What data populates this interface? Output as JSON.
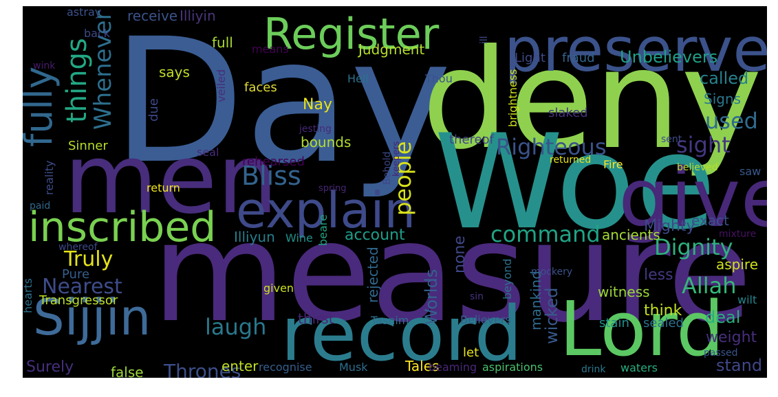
{
  "background": "#000000",
  "words": [
    {
      "text": "Day",
      "color": "#3b5d94"
    },
    {
      "text": "deny",
      "color": "#8fd14f"
    },
    {
      "text": "measure",
      "color": "#4a2a7c"
    },
    {
      "text": "Woe",
      "color": "#26918c"
    },
    {
      "text": "men",
      "color": "#472d7b"
    },
    {
      "text": "give",
      "color": "#472879"
    },
    {
      "text": "record",
      "color": "#2b7d8e"
    },
    {
      "text": "Lord",
      "color": "#5cc863"
    },
    {
      "text": "preserved",
      "color": "#3b528b"
    },
    {
      "text": "Register",
      "color": "#6ccd5a"
    },
    {
      "text": "explain",
      "color": "#3e4a89"
    },
    {
      "text": "inscribed",
      "color": "#7ad151"
    },
    {
      "text": "Sijjin",
      "color": "#3e6b99"
    },
    {
      "text": "fully",
      "color": "#31688e"
    },
    {
      "text": "things",
      "color": "#22a884"
    },
    {
      "text": "Whenever",
      "color": "#2d6f8e"
    },
    {
      "text": "Righteous",
      "color": "#3a538b"
    },
    {
      "text": "Bliss",
      "color": "#33638d"
    },
    {
      "text": "people",
      "color": "#d8e219"
    },
    {
      "text": "sight",
      "color": "#453781"
    },
    {
      "text": "used",
      "color": "#2f6c8e"
    },
    {
      "text": "command",
      "color": "#20a486"
    },
    {
      "text": "Dignity",
      "color": "#2db27d"
    },
    {
      "text": "Allah",
      "color": "#35b779"
    },
    {
      "text": "Truly",
      "color": "#e5e419"
    },
    {
      "text": "Nearest",
      "color": "#3e4c8a"
    },
    {
      "text": "laugh",
      "color": "#2a788e"
    },
    {
      "text": "Thrones",
      "color": "#3c4f8a"
    },
    {
      "text": "account",
      "color": "#1f9e89"
    },
    {
      "text": "Unbelievers",
      "color": "#1fa088"
    },
    {
      "text": "Judgment",
      "color": "#b5de2b"
    },
    {
      "text": "Hell",
      "color": "#2c718e"
    },
    {
      "text": "Thou",
      "color": "#3b528b"
    },
    {
      "text": "Light",
      "color": "#3e4a89"
    },
    {
      "text": "fraud",
      "color": "#33638d"
    },
    {
      "text": "called",
      "color": "#26828e"
    },
    {
      "text": "full",
      "color": "#a8db34"
    },
    {
      "text": "means",
      "color": "#440154"
    },
    {
      "text": "receive",
      "color": "#3b528b"
    },
    {
      "text": "Illiyin",
      "color": "#4a357a"
    },
    {
      "text": "says",
      "color": "#c2df23"
    },
    {
      "text": "faces",
      "color": "#e1dd37"
    },
    {
      "text": "veiled",
      "color": "#472d7b"
    },
    {
      "text": "due",
      "color": "#3e4989"
    },
    {
      "text": "Nay",
      "color": "#e7e419"
    },
    {
      "text": "bounds",
      "color": "#b2dd2d"
    },
    {
      "text": "Sinner",
      "color": "#b8de29"
    },
    {
      "text": "seal",
      "color": "#472d7b"
    },
    {
      "text": "rehearsed",
      "color": "#440154"
    },
    {
      "text": "return",
      "color": "#f4e61e"
    },
    {
      "text": "reality",
      "color": "#3e4c8a"
    },
    {
      "text": "paid",
      "color": "#31688e"
    },
    {
      "text": "jesting",
      "color": "#482878"
    },
    {
      "text": "Behold",
      "color": "#3f4788"
    },
    {
      "text": "keepers",
      "color": "#482475"
    },
    {
      "text": "spring",
      "color": "#482677"
    },
    {
      "text": "Mighty",
      "color": "#3e4989"
    },
    {
      "text": "exact",
      "color": "#3b528b"
    },
    {
      "text": "Illiyun",
      "color": "#277f8e"
    },
    {
      "text": "Wine",
      "color": "#21918c"
    },
    {
      "text": "beare",
      "color": "#21a585"
    },
    {
      "text": "ancients",
      "color": "#a5db36"
    },
    {
      "text": "none",
      "color": "#3f4788"
    },
    {
      "text": "mixture",
      "color": "#471164"
    },
    {
      "text": "aspire",
      "color": "#d0e11c"
    },
    {
      "text": "less",
      "color": "#443983"
    },
    {
      "text": "witness",
      "color": "#9dd93b"
    },
    {
      "text": "think",
      "color": "#c5e021"
    },
    {
      "text": "deal",
      "color": "#29af7f"
    },
    {
      "text": "weight",
      "color": "#472f7d"
    },
    {
      "text": "stain",
      "color": "#21918c"
    },
    {
      "text": "sealed",
      "color": "#2c718e"
    },
    {
      "text": "stand",
      "color": "#3f4788"
    },
    {
      "text": "wicked",
      "color": "#38598c"
    },
    {
      "text": "mankind",
      "color": "#2f6c8e"
    },
    {
      "text": "Worlds",
      "color": "#34618d"
    },
    {
      "text": "rejected",
      "color": "#31688e"
    },
    {
      "text": "Pure",
      "color": "#355f8d"
    },
    {
      "text": "whereof",
      "color": "#3e4989"
    },
    {
      "text": "hearts",
      "color": "#2c718e"
    },
    {
      "text": "Transgressor",
      "color": "#bddf26"
    },
    {
      "text": "Surely",
      "color": "#46307e"
    },
    {
      "text": "false",
      "color": "#9fda3a"
    },
    {
      "text": "enter",
      "color": "#c0df25"
    },
    {
      "text": "recognise",
      "color": "#355f8d"
    },
    {
      "text": "Musk",
      "color": "#2e6e8e"
    },
    {
      "text": "Tales",
      "color": "#fde725"
    },
    {
      "text": "beaming",
      "color": "#482878"
    },
    {
      "text": "aspirations",
      "color": "#4ac16d"
    },
    {
      "text": "drink",
      "color": "#2a788e"
    },
    {
      "text": "waters",
      "color": "#29af7f"
    },
    {
      "text": "passed",
      "color": "#39568c"
    },
    {
      "text": "let",
      "color": "#e8e419"
    },
    {
      "text": "thirst",
      "color": "#482677"
    },
    {
      "text": "Tasnim",
      "color": "#2e6f8e"
    },
    {
      "text": "Believers",
      "color": "#34608d"
    },
    {
      "text": "wilt",
      "color": "#25858e"
    },
    {
      "text": "given",
      "color": "#cae11f"
    },
    {
      "text": "sin",
      "color": "#46337f"
    },
    {
      "text": "mockery",
      "color": "#3b528b"
    },
    {
      "text": "beyond",
      "color": "#2c738e"
    },
    {
      "text": "thereof",
      "color": "#414487"
    },
    {
      "text": "sent",
      "color": "#3e4c8a"
    },
    {
      "text": "returned",
      "color": "#e5e419"
    },
    {
      "text": "Fire",
      "color": "#fde725"
    },
    {
      "text": "believed",
      "color": "#b8de29"
    },
    {
      "text": "saw",
      "color": "#38598c"
    },
    {
      "text": "slaked",
      "color": "#46327e"
    },
    {
      "text": "Signs",
      "color": "#2a788e"
    },
    {
      "text": "brightness",
      "color": "#d2e21b"
    },
    {
      "text": "ill",
      "color": "#3e4c8a"
    },
    {
      "text": "back",
      "color": "#3e4989"
    },
    {
      "text": "wink",
      "color": "#481b6d"
    },
    {
      "text": "astray",
      "color": "#3b528b"
    }
  ]
}
